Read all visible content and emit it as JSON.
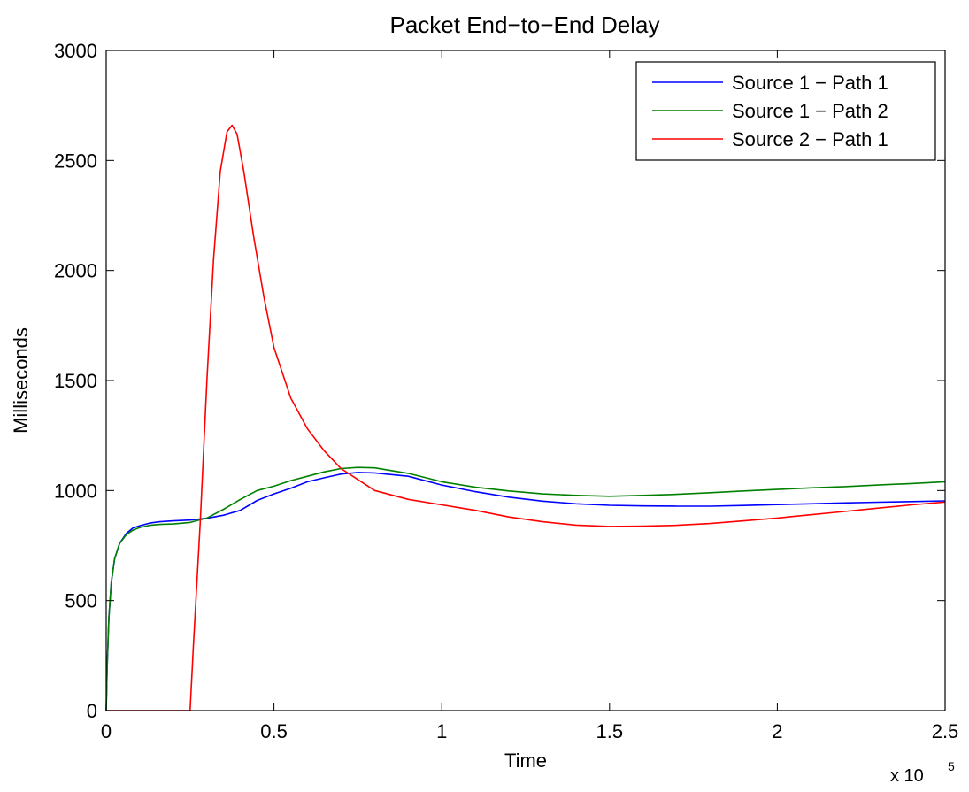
{
  "chart_data": {
    "type": "line",
    "title": "Packet End−to−End Delay",
    "xlabel": "Time",
    "ylabel": "Milliseconds",
    "x_multiplier_label": "x 10",
    "x_multiplier_exp": "5",
    "xlim": [
      0,
      2.5
    ],
    "ylim": [
      0,
      3000
    ],
    "xticks": [
      0,
      0.5,
      1,
      1.5,
      2,
      2.5
    ],
    "xtick_labels": [
      "0",
      "0.5",
      "1",
      "1.5",
      "2",
      "2.5"
    ],
    "yticks": [
      0,
      500,
      1000,
      1500,
      2000,
      2500,
      3000
    ],
    "ytick_labels": [
      "0",
      "500",
      "1000",
      "1500",
      "2000",
      "2500",
      "3000"
    ],
    "grid": false,
    "legend_position": "top-right",
    "series": [
      {
        "name": "Source 1 − Path 1",
        "color": "#0000ff",
        "points": [
          [
            0,
            0
          ],
          [
            0.003,
            200
          ],
          [
            0.008,
            420
          ],
          [
            0.015,
            580
          ],
          [
            0.025,
            690
          ],
          [
            0.04,
            760
          ],
          [
            0.06,
            805
          ],
          [
            0.08,
            830
          ],
          [
            0.1,
            840
          ],
          [
            0.13,
            852
          ],
          [
            0.16,
            858
          ],
          [
            0.2,
            862
          ],
          [
            0.25,
            866
          ],
          [
            0.3,
            874
          ],
          [
            0.35,
            888
          ],
          [
            0.4,
            910
          ],
          [
            0.45,
            955
          ],
          [
            0.5,
            985
          ],
          [
            0.55,
            1010
          ],
          [
            0.6,
            1040
          ],
          [
            0.65,
            1058
          ],
          [
            0.7,
            1075
          ],
          [
            0.75,
            1082
          ],
          [
            0.8,
            1080
          ],
          [
            0.9,
            1065
          ],
          [
            1.0,
            1025
          ],
          [
            1.1,
            995
          ],
          [
            1.2,
            970
          ],
          [
            1.3,
            952
          ],
          [
            1.4,
            940
          ],
          [
            1.5,
            933
          ],
          [
            1.6,
            930
          ],
          [
            1.7,
            929
          ],
          [
            1.8,
            929
          ],
          [
            1.9,
            932
          ],
          [
            2.0,
            936
          ],
          [
            2.1,
            940
          ],
          [
            2.2,
            944
          ],
          [
            2.3,
            947
          ],
          [
            2.4,
            950
          ],
          [
            2.5,
            953
          ]
        ]
      },
      {
        "name": "Source 1 − Path 2",
        "color": "#008000",
        "points": [
          [
            0,
            0
          ],
          [
            0.003,
            200
          ],
          [
            0.008,
            420
          ],
          [
            0.015,
            580
          ],
          [
            0.025,
            690
          ],
          [
            0.04,
            760
          ],
          [
            0.06,
            800
          ],
          [
            0.08,
            820
          ],
          [
            0.1,
            832
          ],
          [
            0.13,
            842
          ],
          [
            0.16,
            846
          ],
          [
            0.2,
            848
          ],
          [
            0.25,
            855
          ],
          [
            0.3,
            875
          ],
          [
            0.35,
            915
          ],
          [
            0.4,
            960
          ],
          [
            0.45,
            1000
          ],
          [
            0.5,
            1020
          ],
          [
            0.55,
            1045
          ],
          [
            0.6,
            1065
          ],
          [
            0.65,
            1085
          ],
          [
            0.7,
            1100
          ],
          [
            0.75,
            1105
          ],
          [
            0.8,
            1103
          ],
          [
            0.9,
            1078
          ],
          [
            1.0,
            1040
          ],
          [
            1.1,
            1015
          ],
          [
            1.2,
            998
          ],
          [
            1.3,
            985
          ],
          [
            1.4,
            978
          ],
          [
            1.5,
            974
          ],
          [
            1.6,
            978
          ],
          [
            1.7,
            983
          ],
          [
            1.8,
            990
          ],
          [
            1.9,
            998
          ],
          [
            2.0,
            1005
          ],
          [
            2.1,
            1012
          ],
          [
            2.2,
            1018
          ],
          [
            2.3,
            1025
          ],
          [
            2.4,
            1032
          ],
          [
            2.5,
            1040
          ]
        ]
      },
      {
        "name": "Source 2 − Path 1",
        "color": "#ff0000",
        "points": [
          [
            0,
            0
          ],
          [
            0.25,
            0
          ],
          [
            0.26,
            300
          ],
          [
            0.28,
            850
          ],
          [
            0.3,
            1500
          ],
          [
            0.32,
            2050
          ],
          [
            0.34,
            2450
          ],
          [
            0.36,
            2630
          ],
          [
            0.375,
            2660
          ],
          [
            0.39,
            2620
          ],
          [
            0.41,
            2450
          ],
          [
            0.44,
            2150
          ],
          [
            0.47,
            1880
          ],
          [
            0.5,
            1650
          ],
          [
            0.55,
            1420
          ],
          [
            0.6,
            1280
          ],
          [
            0.65,
            1180
          ],
          [
            0.7,
            1100
          ],
          [
            0.75,
            1050
          ],
          [
            0.8,
            1000
          ],
          [
            0.9,
            960
          ],
          [
            1.0,
            935
          ],
          [
            1.1,
            910
          ],
          [
            1.2,
            880
          ],
          [
            1.3,
            858
          ],
          [
            1.4,
            843
          ],
          [
            1.5,
            837
          ],
          [
            1.6,
            838
          ],
          [
            1.7,
            842
          ],
          [
            1.8,
            850
          ],
          [
            1.9,
            862
          ],
          [
            2.0,
            875
          ],
          [
            2.1,
            890
          ],
          [
            2.2,
            905
          ],
          [
            2.3,
            920
          ],
          [
            2.4,
            935
          ],
          [
            2.5,
            948
          ]
        ]
      }
    ]
  }
}
